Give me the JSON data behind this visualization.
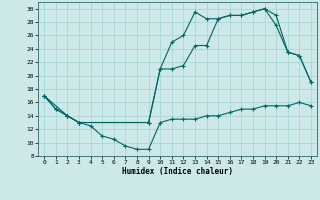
{
  "title": "",
  "xlabel": "Humidex (Indice chaleur)",
  "bg_color": "#cce8e8",
  "line_color": "#006666",
  "xlim": [
    -0.5,
    23.5
  ],
  "ylim": [
    8,
    31
  ],
  "yticks": [
    8,
    10,
    12,
    14,
    16,
    18,
    20,
    22,
    24,
    26,
    28,
    30
  ],
  "xticks": [
    0,
    1,
    2,
    3,
    4,
    5,
    6,
    7,
    8,
    9,
    10,
    11,
    12,
    13,
    14,
    15,
    16,
    17,
    18,
    19,
    20,
    21,
    22,
    23
  ],
  "line1_x": [
    0,
    1,
    2,
    3,
    4,
    5,
    6,
    7,
    8,
    9,
    10,
    11,
    12,
    13,
    14,
    15,
    16,
    17,
    18,
    19,
    20,
    21,
    22,
    23
  ],
  "line1_y": [
    17,
    15,
    14,
    13,
    12.5,
    11,
    10.5,
    9.5,
    9,
    9,
    13,
    13.5,
    13.5,
    13.5,
    14,
    14,
    14.5,
    15,
    15,
    15.5,
    15.5,
    15.5,
    16,
    15.5
  ],
  "line2_x": [
    0,
    1,
    2,
    3,
    9,
    10,
    11,
    12,
    13,
    14,
    15,
    16,
    17,
    18,
    19,
    20,
    21,
    22,
    23
  ],
  "line2_y": [
    17,
    15,
    14,
    13,
    13,
    21,
    21,
    21.5,
    24.5,
    24.5,
    28.5,
    29,
    29,
    29.5,
    30,
    29,
    23.5,
    23,
    19
  ],
  "line3_x": [
    0,
    2,
    3,
    9,
    10,
    11,
    12,
    13,
    14,
    15,
    16,
    17,
    18,
    19,
    20,
    21,
    22,
    23
  ],
  "line3_y": [
    17,
    14,
    13,
    13,
    21,
    25,
    26,
    29.5,
    28.5,
    28.5,
    29,
    29,
    29.5,
    30,
    27.5,
    23.5,
    23,
    19
  ]
}
